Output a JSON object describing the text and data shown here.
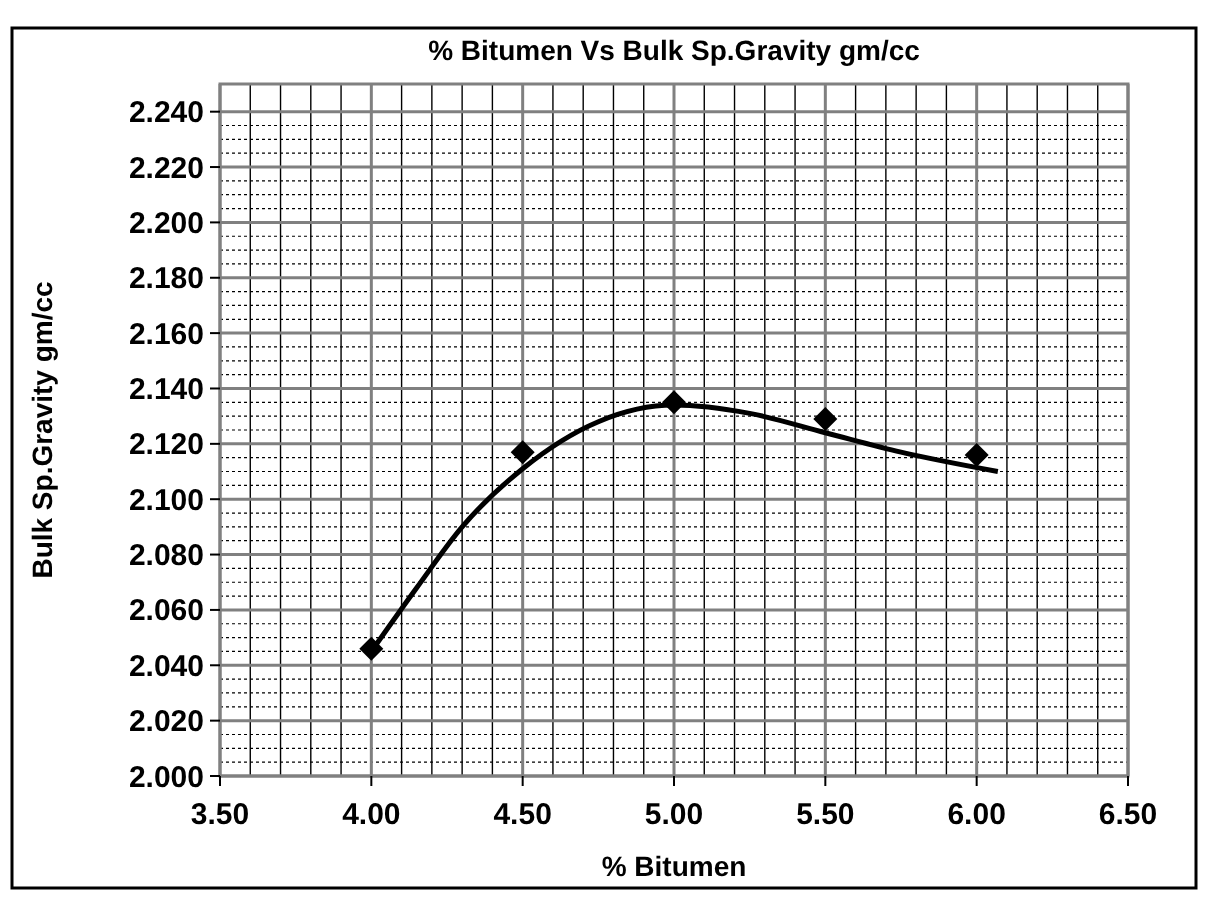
{
  "chart_data": {
    "type": "scatter",
    "title": "% Bitumen Vs Bulk Sp.Gravity gm/cc",
    "xlabel": "%  Bitumen",
    "ylabel": "Bulk Sp.Gravity gm/cc",
    "series": [
      {
        "color": "#000000",
        "marker": "diamond",
        "x": [
          4.0,
          4.5,
          5.0,
          5.5,
          6.0
        ],
        "values": [
          2.046,
          2.117,
          2.135,
          2.129,
          2.116
        ]
      },
      {
        "type": "line",
        "color": "#000000",
        "marker": "none",
        "line_style": "solid",
        "x": [
          4.0,
          4.15,
          4.3,
          4.5,
          4.75,
          5.0,
          5.25,
          5.5,
          5.75,
          6.07
        ],
        "values": [
          2.045,
          2.068,
          2.09,
          2.111,
          2.128,
          2.134,
          2.131,
          2.124,
          2.117,
          2.11
        ]
      }
    ],
    "xlim": [
      3.5,
      6.5
    ],
    "xticks": [
      {
        "value": 3.5,
        "label": "3.50"
      },
      {
        "value": 4,
        "label": "4.00"
      },
      {
        "value": 4.5,
        "label": "4.50"
      },
      {
        "value": 5,
        "label": "5.00"
      },
      {
        "value": 5.5,
        "label": "5.50"
      },
      {
        "value": 6,
        "label": "6.00"
      },
      {
        "value": 6.5,
        "label": "6.50"
      }
    ],
    "ylim": [
      2.0,
      2.25
    ],
    "yticks": [
      {
        "value": 2.0,
        "label": "2.000"
      },
      {
        "value": 2.02,
        "label": "2.020"
      },
      {
        "value": 2.04,
        "label": "2.040"
      },
      {
        "value": 2.06,
        "label": "2.060"
      },
      {
        "value": 2.08,
        "label": "2.080"
      },
      {
        "value": 2.1,
        "label": "2.100"
      },
      {
        "value": 2.12,
        "label": "2.120"
      },
      {
        "value": 2.14,
        "label": "2.140"
      },
      {
        "value": 2.16,
        "label": "2.160"
      },
      {
        "value": 2.18,
        "label": "2.180"
      },
      {
        "value": 2.2,
        "label": "2.200"
      },
      {
        "value": 2.22,
        "label": "2.220"
      },
      {
        "value": 2.24,
        "label": "2.240"
      }
    ],
    "grid": true
  }
}
